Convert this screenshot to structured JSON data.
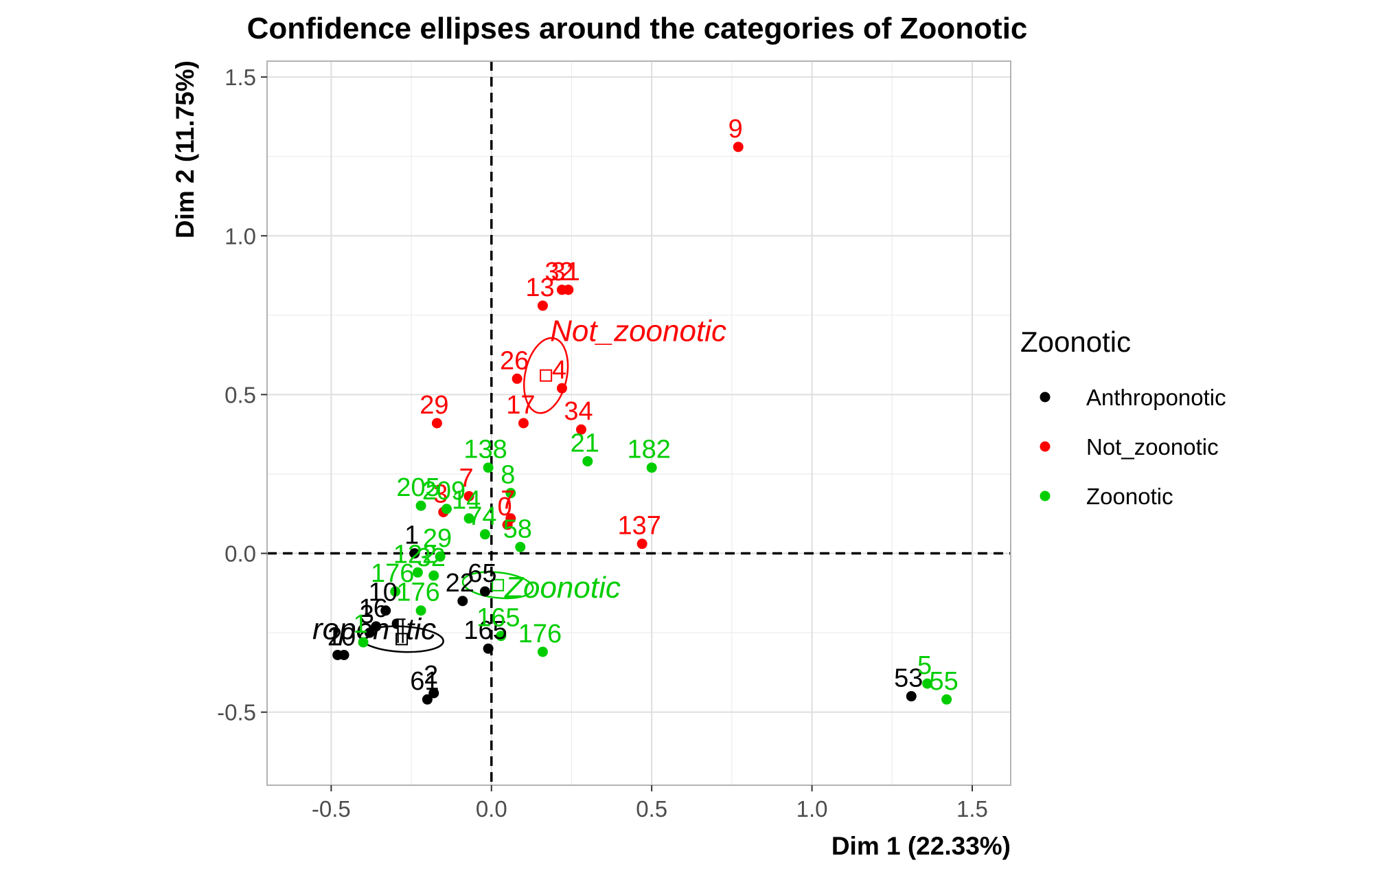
{
  "chart_data": {
    "type": "scatter",
    "title": "Confidence ellipses around the categories of Zoonotic",
    "xlabel": "Dim 1 (22.33%)",
    "ylabel": "Dim 2 (11.75%)",
    "xlim": [
      -0.7,
      1.62
    ],
    "ylim": [
      -0.73,
      1.55
    ],
    "xticks": [
      -0.5,
      0.0,
      0.5,
      1.0,
      1.5
    ],
    "xtick_labels": [
      "-0.5",
      "0.0",
      "0.5",
      "1.0",
      "1.5"
    ],
    "yticks": [
      -0.5,
      0.0,
      0.5,
      1.0,
      1.5
    ],
    "ytick_labels": [
      "-0.5",
      "0.0",
      "0.5",
      "1.0",
      "1.5"
    ],
    "grid": true,
    "reference_lines": {
      "x": 0,
      "y": 0,
      "style": "dashed"
    },
    "legend": {
      "title": "Zoonotic",
      "position": "right",
      "entries": [
        {
          "label": "Anthroponotic",
          "color": "#000000"
        },
        {
          "label": "Not_zoonotic",
          "color": "#ff0000"
        },
        {
          "label": "Zoonotic",
          "color": "#00cd00"
        }
      ]
    },
    "series": [
      {
        "name": "Anthroponotic",
        "color": "#000000",
        "points": [
          {
            "x": -0.24,
            "y": 0.0,
            "label": "1"
          },
          {
            "x": -0.33,
            "y": -0.18,
            "label": "10"
          },
          {
            "x": -0.36,
            "y": -0.23,
            "label": "16"
          },
          {
            "x": -0.38,
            "y": -0.25,
            "label": "3"
          },
          {
            "x": -0.46,
            "y": -0.32,
            "label": "10"
          },
          {
            "x": -0.48,
            "y": -0.32,
            "label": "2"
          },
          {
            "x": -0.09,
            "y": -0.15,
            "label": "22"
          },
          {
            "x": -0.02,
            "y": -0.12,
            "label": "65"
          },
          {
            "x": -0.01,
            "y": -0.3,
            "label": "165"
          },
          {
            "x": -0.2,
            "y": -0.46,
            "label": "61"
          },
          {
            "x": -0.18,
            "y": -0.44,
            "label": "2"
          },
          {
            "x": 1.31,
            "y": -0.45,
            "label": "53"
          }
        ]
      },
      {
        "name": "Not_zoonotic",
        "color": "#ff0000",
        "points": [
          {
            "x": 0.77,
            "y": 1.28,
            "label": "9"
          },
          {
            "x": 0.22,
            "y": 0.83,
            "label": "32"
          },
          {
            "x": 0.24,
            "y": 0.83,
            "label": "31"
          },
          {
            "x": 0.16,
            "y": 0.78,
            "label": "13"
          },
          {
            "x": 0.08,
            "y": 0.55,
            "label": "26"
          },
          {
            "x": 0.22,
            "y": 0.52,
            "label": "4"
          },
          {
            "x": 0.1,
            "y": 0.41,
            "label": "17"
          },
          {
            "x": 0.28,
            "y": 0.39,
            "label": "34"
          },
          {
            "x": -0.17,
            "y": 0.41,
            "label": "29"
          },
          {
            "x": -0.15,
            "y": 0.13,
            "label": "3"
          },
          {
            "x": -0.07,
            "y": 0.18,
            "label": "7"
          },
          {
            "x": 0.06,
            "y": 0.11,
            "label": "7"
          },
          {
            "x": 0.05,
            "y": 0.09,
            "label": "0"
          },
          {
            "x": 0.47,
            "y": 0.03,
            "label": "137"
          }
        ]
      },
      {
        "name": "Zoonotic",
        "color": "#00cd00",
        "points": [
          {
            "x": -0.01,
            "y": 0.27,
            "label": "138"
          },
          {
            "x": 0.06,
            "y": 0.19,
            "label": "8"
          },
          {
            "x": 0.3,
            "y": 0.29,
            "label": "21"
          },
          {
            "x": 0.5,
            "y": 0.27,
            "label": "182"
          },
          {
            "x": -0.22,
            "y": 0.15,
            "label": "205"
          },
          {
            "x": -0.14,
            "y": 0.14,
            "label": "209"
          },
          {
            "x": -0.07,
            "y": 0.11,
            "label": "14"
          },
          {
            "x": -0.02,
            "y": 0.06,
            "label": "74"
          },
          {
            "x": 0.09,
            "y": 0.02,
            "label": "58"
          },
          {
            "x": -0.16,
            "y": -0.01,
            "label": "29"
          },
          {
            "x": -0.23,
            "y": -0.06,
            "label": "122"
          },
          {
            "x": -0.18,
            "y": -0.07,
            "label": "32"
          },
          {
            "x": -0.3,
            "y": -0.12,
            "label": "176"
          },
          {
            "x": -0.22,
            "y": -0.18,
            "label": "176"
          },
          {
            "x": -0.4,
            "y": -0.28,
            "label": "1"
          },
          {
            "x": 0.03,
            "y": -0.26,
            "label": "165"
          },
          {
            "x": 0.16,
            "y": -0.31,
            "label": "176"
          },
          {
            "x": 1.36,
            "y": -0.41,
            "label": "5"
          },
          {
            "x": 1.42,
            "y": -0.46,
            "label": "55"
          }
        ]
      }
    ],
    "category_centers": [
      {
        "name": "Not_zoonotic",
        "x": 0.17,
        "y": 0.56,
        "label": "Not_zoonotic",
        "color": "#ff0000"
      },
      {
        "name": "Zoonotic",
        "x": 0.02,
        "y": -0.1,
        "label": "Zoonotic",
        "color": "#00cd00"
      },
      {
        "name": "Anthroponotic",
        "x": -0.28,
        "y": -0.27,
        "label": "ropon¶tic",
        "color": "#000000"
      }
    ]
  }
}
